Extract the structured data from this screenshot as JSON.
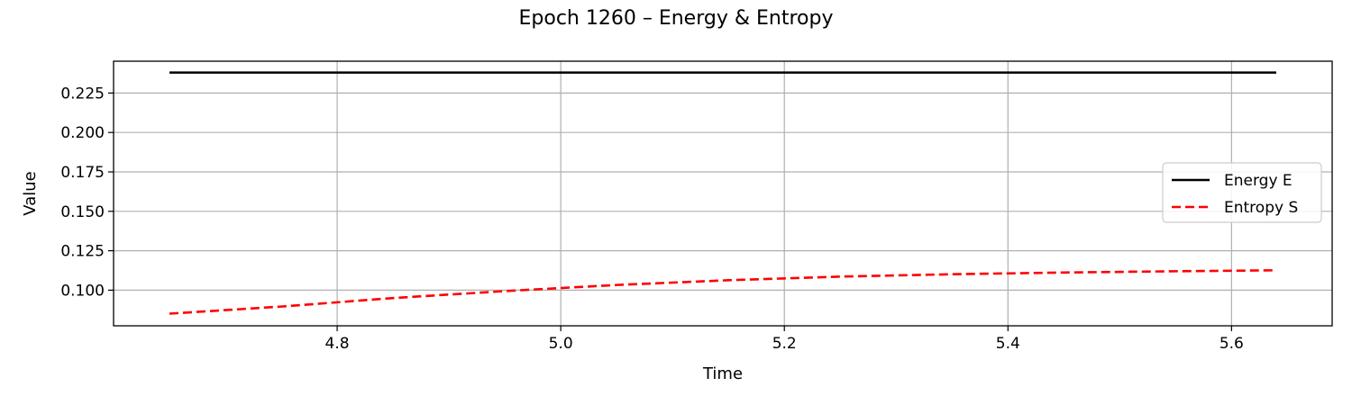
{
  "chart_data": {
    "type": "line",
    "title": "Epoch 1260 – Energy & Entropy",
    "xlabel": "Time",
    "ylabel": "Value",
    "xlim": [
      4.6,
      5.69
    ],
    "ylim": [
      0.0774,
      0.2452
    ],
    "xticks": [
      4.8,
      5.0,
      5.2,
      5.4,
      5.6
    ],
    "xtick_labels": [
      "4.8",
      "5.0",
      "5.2",
      "5.4",
      "5.6"
    ],
    "yticks": [
      0.1,
      0.125,
      0.15,
      0.175,
      0.2,
      0.225
    ],
    "ytick_labels": [
      "0.100",
      "0.125",
      "0.150",
      "0.175",
      "0.200",
      "0.225"
    ],
    "grid": true,
    "legend_position": "center-right",
    "series": [
      {
        "name": "Energy E",
        "color": "#000000",
        "style": "solid",
        "x": [
          4.65,
          4.75,
          4.85,
          4.95,
          5.05,
          5.15,
          5.25,
          5.35,
          5.45,
          5.55,
          5.64
        ],
        "y": [
          0.238,
          0.238,
          0.238,
          0.238,
          0.238,
          0.238,
          0.238,
          0.238,
          0.238,
          0.238,
          0.238
        ]
      },
      {
        "name": "Entropy S",
        "color": "#ff0000",
        "style": "dashed",
        "x": [
          4.65,
          4.75,
          4.85,
          4.95,
          5.05,
          5.15,
          5.25,
          5.35,
          5.45,
          5.55,
          5.64
        ],
        "y": [
          0.0851,
          0.0896,
          0.095,
          0.0994,
          0.1033,
          0.1063,
          0.1086,
          0.1101,
          0.1112,
          0.112,
          0.1126
        ]
      }
    ]
  }
}
